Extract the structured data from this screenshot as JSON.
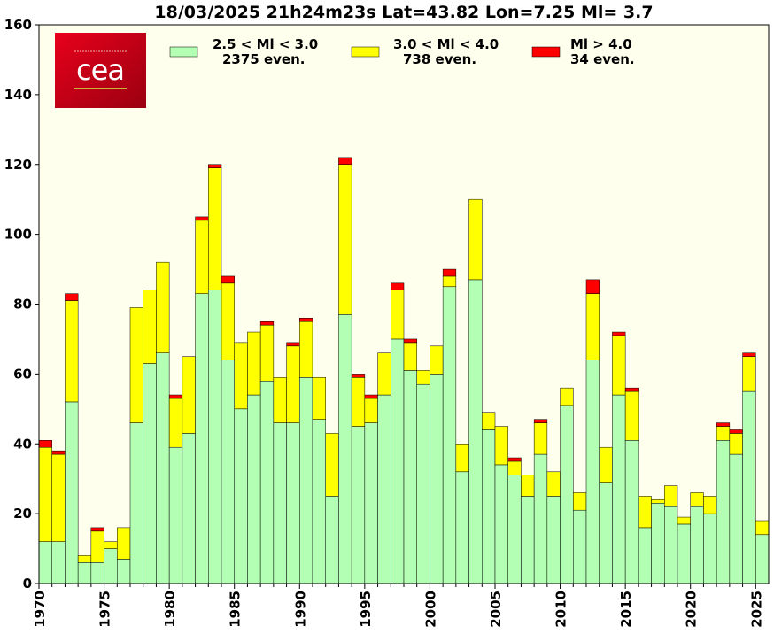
{
  "chart_data": {
    "type": "bar",
    "stacked": true,
    "title": "18/03/2025 21h24m23s Lat=43.82 Lon=7.25 Ml= 3.7",
    "xlabel": "",
    "ylabel": "",
    "ylim": [
      0,
      160
    ],
    "yticks": [
      0,
      20,
      40,
      60,
      80,
      100,
      120,
      140,
      160
    ],
    "xticks": [
      1970,
      1975,
      1980,
      1985,
      1990,
      1995,
      2000,
      2005,
      2010,
      2015,
      2020,
      2025
    ],
    "grid": false,
    "legend_position": "top",
    "x": [
      1970,
      1971,
      1972,
      1973,
      1974,
      1975,
      1976,
      1977,
      1978,
      1979,
      1980,
      1981,
      1982,
      1983,
      1984,
      1985,
      1986,
      1987,
      1988,
      1989,
      1990,
      1991,
      1992,
      1993,
      1994,
      1995,
      1996,
      1997,
      1998,
      1999,
      2000,
      2001,
      2002,
      2003,
      2004,
      2005,
      2006,
      2007,
      2008,
      2009,
      2010,
      2011,
      2012,
      2013,
      2014,
      2015,
      2016,
      2017,
      2018,
      2019,
      2020,
      2021,
      2022,
      2023,
      2024,
      2025
    ],
    "series": [
      {
        "name": "2.5 < Ml <  3.0",
        "count_label": "2375 even.",
        "color": "#b3ffb3",
        "values": [
          12,
          12,
          52,
          6,
          6,
          10,
          7,
          46,
          63,
          66,
          39,
          43,
          83,
          84,
          64,
          50,
          54,
          58,
          46,
          46,
          59,
          47,
          25,
          77,
          45,
          46,
          54,
          70,
          61,
          57,
          60,
          85,
          32,
          87,
          44,
          34,
          31,
          25,
          37,
          25,
          51,
          21,
          64,
          29,
          54,
          41,
          16,
          23,
          22,
          17,
          22,
          20,
          41,
          37,
          55,
          14
        ]
      },
      {
        "name": "3.0 < Ml <  4.0",
        "count_label": "738 even.",
        "color": "#ffff00",
        "values": [
          27,
          25,
          29,
          2,
          9,
          2,
          9,
          33,
          21,
          26,
          14,
          22,
          21,
          35,
          22,
          19,
          18,
          16,
          13,
          22,
          16,
          12,
          18,
          43,
          14,
          7,
          12,
          14,
          8,
          4,
          8,
          3,
          8,
          23,
          5,
          11,
          4,
          6,
          9,
          7,
          5,
          5,
          19,
          10,
          17,
          14,
          9,
          1,
          6,
          2,
          4,
          5,
          4,
          6,
          10,
          4
        ]
      },
      {
        "name": "Ml >  4.0",
        "count_label": "34 even.",
        "color": "#ff0000",
        "values": [
          2,
          1,
          2,
          0,
          1,
          0,
          0,
          0,
          0,
          0,
          1,
          0,
          1,
          1,
          2,
          0,
          0,
          1,
          0,
          1,
          1,
          0,
          0,
          2,
          1,
          1,
          0,
          2,
          1,
          0,
          0,
          2,
          0,
          0,
          0,
          0,
          1,
          0,
          1,
          0,
          0,
          0,
          4,
          0,
          1,
          1,
          0,
          0,
          0,
          0,
          0,
          0,
          1,
          1,
          1,
          0
        ]
      }
    ]
  },
  "logo": {
    "text": "cea"
  },
  "colors": {
    "plot_bg": "#ffffee"
  }
}
